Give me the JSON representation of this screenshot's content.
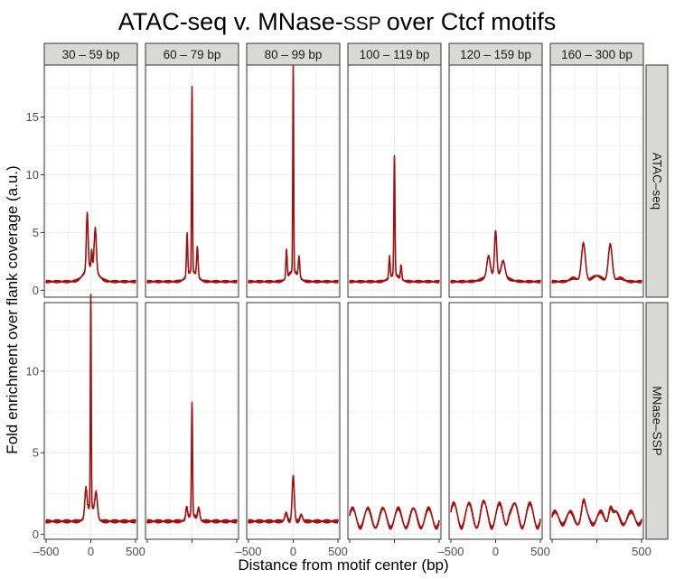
{
  "colors": {
    "line": "#a50f0f",
    "strip_bg": "#d9d9d6",
    "panel_border": "#333333",
    "grid": "#ebebeb"
  },
  "chart_data": {
    "type": "line",
    "title": "ATAC-seq v. MNase-",
    "title_suffix": "SSP",
    "title_tail": "over Ctcf motifs",
    "xlabel": "Distance from motif center (bp)",
    "ylabel": "Fold enrichment over flank coverage (a.u.)",
    "columns": [
      "30 – 59 bp",
      "60 – 79 bp",
      "80 – 99 bp",
      "100 – 119 bp",
      "120 – 159 bp",
      "160 – 300 bp"
    ],
    "rows": [
      "ATAC–seq",
      "MNase–SSP"
    ],
    "xlim": [
      -520,
      520
    ],
    "x_ticks": [
      -500,
      0,
      500
    ],
    "x_tick_labels": [
      "–500",
      "0",
      "500"
    ],
    "row_ylim": [
      [
        -0.6,
        19.5
      ],
      [
        -0.3,
        14.2
      ]
    ],
    "row_y_ticks": [
      [
        0,
        5,
        10,
        15
      ],
      [
        0,
        5,
        10
      ]
    ],
    "grid": true,
    "legend": "none",
    "series": [
      {
        "row": 0,
        "col": 0,
        "baseline": 0.75,
        "oscillation": 0,
        "peaks": [
          [
            -40,
            4.8,
            10
          ],
          [
            50,
            3.6,
            12
          ],
          [
            10,
            1.5,
            6
          ],
          [
            0,
            1.3,
            70
          ]
        ]
      },
      {
        "row": 0,
        "col": 1,
        "baseline": 0.75,
        "oscillation": 0,
        "peaks": [
          [
            0,
            16.0,
            5
          ],
          [
            -55,
            3.6,
            7
          ],
          [
            60,
            2.5,
            8
          ],
          [
            0,
            0.9,
            55
          ]
        ]
      },
      {
        "row": 0,
        "col": 2,
        "baseline": 0.75,
        "oscillation": 0,
        "peaks": [
          [
            0,
            17.8,
            5
          ],
          [
            -75,
            2.4,
            7
          ],
          [
            65,
            1.7,
            8
          ],
          [
            0,
            0.9,
            55
          ]
        ]
      },
      {
        "row": 0,
        "col": 3,
        "baseline": 0.75,
        "oscillation": 0,
        "peaks": [
          [
            0,
            10.3,
            6
          ],
          [
            -55,
            1.8,
            7
          ],
          [
            75,
            1.2,
            7
          ],
          [
            0,
            0.6,
            55
          ]
        ]
      },
      {
        "row": 0,
        "col": 4,
        "baseline": 0.75,
        "oscillation": 0,
        "peaks": [
          [
            0,
            3.7,
            12
          ],
          [
            -80,
            1.7,
            18
          ],
          [
            85,
            1.3,
            20
          ],
          [
            0,
            0.7,
            100
          ]
        ]
      },
      {
        "row": 0,
        "col": 5,
        "baseline": 0.75,
        "oscillation": 0,
        "peaks": [
          [
            -150,
            3.3,
            22
          ],
          [
            150,
            3.2,
            22
          ],
          [
            0,
            0.5,
            55
          ],
          [
            -260,
            0.3,
            40
          ],
          [
            260,
            0.3,
            40
          ]
        ]
      },
      {
        "row": 1,
        "col": 0,
        "baseline": 0.8,
        "oscillation": 0,
        "peaks": [
          [
            0,
            13.0,
            5
          ],
          [
            -55,
            1.6,
            12
          ],
          [
            60,
            1.4,
            14
          ],
          [
            0,
            0.9,
            45
          ]
        ]
      },
      {
        "row": 1,
        "col": 1,
        "baseline": 0.8,
        "oscillation": 0,
        "peaks": [
          [
            0,
            6.9,
            6
          ],
          [
            -60,
            0.7,
            10
          ],
          [
            75,
            0.7,
            12
          ],
          [
            0,
            0.4,
            45
          ]
        ]
      },
      {
        "row": 1,
        "col": 2,
        "baseline": 0.8,
        "oscillation": 0,
        "peaks": [
          [
            0,
            2.8,
            12
          ],
          [
            -80,
            0.5,
            14
          ],
          [
            90,
            0.4,
            14
          ]
        ]
      },
      {
        "row": 1,
        "col": 3,
        "baseline": 1.0,
        "oscillation": 0.6,
        "peaks": []
      },
      {
        "row": 1,
        "col": 4,
        "baseline": 1.15,
        "oscillation": 0.75,
        "peaks": [
          [
            150,
            0.5,
            20
          ],
          [
            -150,
            0.2,
            20
          ]
        ]
      },
      {
        "row": 1,
        "col": 5,
        "baseline": 1.0,
        "oscillation": 0.4,
        "peaks": [
          [
            -150,
            0.8,
            20
          ],
          [
            150,
            0.9,
            20
          ]
        ]
      }
    ]
  }
}
